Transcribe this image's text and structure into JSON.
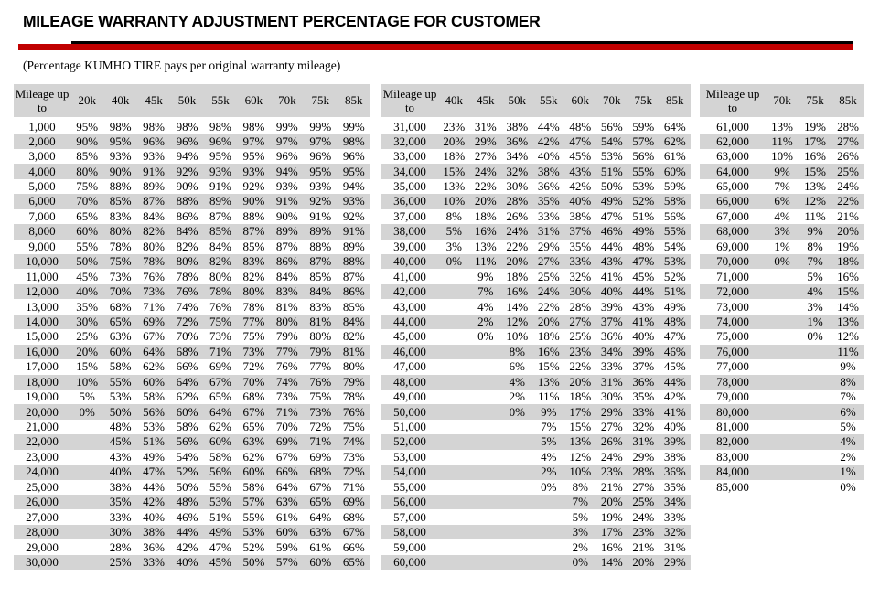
{
  "title": "MILEAGE WARRANTY ADJUSTMENT PERCENTAGE FOR CUSTOMER",
  "subtitle": "(Percentage KUMHO TIRE pays per original warranty mileage)",
  "colors": {
    "accent_red": "#c00000",
    "rule_black": "#000000",
    "header_gray": "#d4d4d4",
    "stripe_gray": "#d4d4d4"
  },
  "tables": [
    {
      "mileage_header": "Mileage up to",
      "columns": [
        "20k",
        "40k",
        "45k",
        "50k",
        "55k",
        "60k",
        "70k",
        "75k",
        "85k"
      ],
      "rows": [
        {
          "mileage": "1,000",
          "values": [
            "95%",
            "98%",
            "98%",
            "98%",
            "98%",
            "98%",
            "99%",
            "99%",
            "99%"
          ]
        },
        {
          "mileage": "2,000",
          "values": [
            "90%",
            "95%",
            "96%",
            "96%",
            "96%",
            "97%",
            "97%",
            "97%",
            "98%"
          ]
        },
        {
          "mileage": "3,000",
          "values": [
            "85%",
            "93%",
            "93%",
            "94%",
            "95%",
            "95%",
            "96%",
            "96%",
            "96%"
          ]
        },
        {
          "mileage": "4,000",
          "values": [
            "80%",
            "90%",
            "91%",
            "92%",
            "93%",
            "93%",
            "94%",
            "95%",
            "95%"
          ]
        },
        {
          "mileage": "5,000",
          "values": [
            "75%",
            "88%",
            "89%",
            "90%",
            "91%",
            "92%",
            "93%",
            "93%",
            "94%"
          ]
        },
        {
          "mileage": "6,000",
          "values": [
            "70%",
            "85%",
            "87%",
            "88%",
            "89%",
            "90%",
            "91%",
            "92%",
            "93%"
          ]
        },
        {
          "mileage": "7,000",
          "values": [
            "65%",
            "83%",
            "84%",
            "86%",
            "87%",
            "88%",
            "90%",
            "91%",
            "92%"
          ]
        },
        {
          "mileage": "8,000",
          "values": [
            "60%",
            "80%",
            "82%",
            "84%",
            "85%",
            "87%",
            "89%",
            "89%",
            "91%"
          ]
        },
        {
          "mileage": "9,000",
          "values": [
            "55%",
            "78%",
            "80%",
            "82%",
            "84%",
            "85%",
            "87%",
            "88%",
            "89%"
          ]
        },
        {
          "mileage": "10,000",
          "values": [
            "50%",
            "75%",
            "78%",
            "80%",
            "82%",
            "83%",
            "86%",
            "87%",
            "88%"
          ]
        },
        {
          "mileage": "11,000",
          "values": [
            "45%",
            "73%",
            "76%",
            "78%",
            "80%",
            "82%",
            "84%",
            "85%",
            "87%"
          ]
        },
        {
          "mileage": "12,000",
          "values": [
            "40%",
            "70%",
            "73%",
            "76%",
            "78%",
            "80%",
            "83%",
            "84%",
            "86%"
          ]
        },
        {
          "mileage": "13,000",
          "values": [
            "35%",
            "68%",
            "71%",
            "74%",
            "76%",
            "78%",
            "81%",
            "83%",
            "85%"
          ]
        },
        {
          "mileage": "14,000",
          "values": [
            "30%",
            "65%",
            "69%",
            "72%",
            "75%",
            "77%",
            "80%",
            "81%",
            "84%"
          ]
        },
        {
          "mileage": "15,000",
          "values": [
            "25%",
            "63%",
            "67%",
            "70%",
            "73%",
            "75%",
            "79%",
            "80%",
            "82%"
          ]
        },
        {
          "mileage": "16,000",
          "values": [
            "20%",
            "60%",
            "64%",
            "68%",
            "71%",
            "73%",
            "77%",
            "79%",
            "81%"
          ]
        },
        {
          "mileage": "17,000",
          "values": [
            "15%",
            "58%",
            "62%",
            "66%",
            "69%",
            "72%",
            "76%",
            "77%",
            "80%"
          ]
        },
        {
          "mileage": "18,000",
          "values": [
            "10%",
            "55%",
            "60%",
            "64%",
            "67%",
            "70%",
            "74%",
            "76%",
            "79%"
          ]
        },
        {
          "mileage": "19,000",
          "values": [
            "5%",
            "53%",
            "58%",
            "62%",
            "65%",
            "68%",
            "73%",
            "75%",
            "78%"
          ]
        },
        {
          "mileage": "20,000",
          "values": [
            "0%",
            "50%",
            "56%",
            "60%",
            "64%",
            "67%",
            "71%",
            "73%",
            "76%"
          ]
        },
        {
          "mileage": "21,000",
          "values": [
            "",
            "48%",
            "53%",
            "58%",
            "62%",
            "65%",
            "70%",
            "72%",
            "75%"
          ]
        },
        {
          "mileage": "22,000",
          "values": [
            "",
            "45%",
            "51%",
            "56%",
            "60%",
            "63%",
            "69%",
            "71%",
            "74%"
          ]
        },
        {
          "mileage": "23,000",
          "values": [
            "",
            "43%",
            "49%",
            "54%",
            "58%",
            "62%",
            "67%",
            "69%",
            "73%"
          ]
        },
        {
          "mileage": "24,000",
          "values": [
            "",
            "40%",
            "47%",
            "52%",
            "56%",
            "60%",
            "66%",
            "68%",
            "72%"
          ]
        },
        {
          "mileage": "25,000",
          "values": [
            "",
            "38%",
            "44%",
            "50%",
            "55%",
            "58%",
            "64%",
            "67%",
            "71%"
          ]
        },
        {
          "mileage": "26,000",
          "values": [
            "",
            "35%",
            "42%",
            "48%",
            "53%",
            "57%",
            "63%",
            "65%",
            "69%"
          ]
        },
        {
          "mileage": "27,000",
          "values": [
            "",
            "33%",
            "40%",
            "46%",
            "51%",
            "55%",
            "61%",
            "64%",
            "68%"
          ]
        },
        {
          "mileage": "28,000",
          "values": [
            "",
            "30%",
            "38%",
            "44%",
            "49%",
            "53%",
            "60%",
            "63%",
            "67%"
          ]
        },
        {
          "mileage": "29,000",
          "values": [
            "",
            "28%",
            "36%",
            "42%",
            "47%",
            "52%",
            "59%",
            "61%",
            "66%"
          ]
        },
        {
          "mileage": "30,000",
          "values": [
            "",
            "25%",
            "33%",
            "40%",
            "45%",
            "50%",
            "57%",
            "60%",
            "65%"
          ]
        }
      ]
    },
    {
      "mileage_header": "Mileage up to",
      "columns": [
        "40k",
        "45k",
        "50k",
        "55k",
        "60k",
        "70k",
        "75k",
        "85k"
      ],
      "rows": [
        {
          "mileage": "31,000",
          "values": [
            "23%",
            "31%",
            "38%",
            "44%",
            "48%",
            "56%",
            "59%",
            "64%"
          ]
        },
        {
          "mileage": "32,000",
          "values": [
            "20%",
            "29%",
            "36%",
            "42%",
            "47%",
            "54%",
            "57%",
            "62%"
          ]
        },
        {
          "mileage": "33,000",
          "values": [
            "18%",
            "27%",
            "34%",
            "40%",
            "45%",
            "53%",
            "56%",
            "61%"
          ]
        },
        {
          "mileage": "34,000",
          "values": [
            "15%",
            "24%",
            "32%",
            "38%",
            "43%",
            "51%",
            "55%",
            "60%"
          ]
        },
        {
          "mileage": "35,000",
          "values": [
            "13%",
            "22%",
            "30%",
            "36%",
            "42%",
            "50%",
            "53%",
            "59%"
          ]
        },
        {
          "mileage": "36,000",
          "values": [
            "10%",
            "20%",
            "28%",
            "35%",
            "40%",
            "49%",
            "52%",
            "58%"
          ]
        },
        {
          "mileage": "37,000",
          "values": [
            "8%",
            "18%",
            "26%",
            "33%",
            "38%",
            "47%",
            "51%",
            "56%"
          ]
        },
        {
          "mileage": "38,000",
          "values": [
            "5%",
            "16%",
            "24%",
            "31%",
            "37%",
            "46%",
            "49%",
            "55%"
          ]
        },
        {
          "mileage": "39,000",
          "values": [
            "3%",
            "13%",
            "22%",
            "29%",
            "35%",
            "44%",
            "48%",
            "54%"
          ]
        },
        {
          "mileage": "40,000",
          "values": [
            "0%",
            "11%",
            "20%",
            "27%",
            "33%",
            "43%",
            "47%",
            "53%"
          ]
        },
        {
          "mileage": "41,000",
          "values": [
            "",
            "9%",
            "18%",
            "25%",
            "32%",
            "41%",
            "45%",
            "52%"
          ]
        },
        {
          "mileage": "42,000",
          "values": [
            "",
            "7%",
            "16%",
            "24%",
            "30%",
            "40%",
            "44%",
            "51%"
          ]
        },
        {
          "mileage": "43,000",
          "values": [
            "",
            "4%",
            "14%",
            "22%",
            "28%",
            "39%",
            "43%",
            "49%"
          ]
        },
        {
          "mileage": "44,000",
          "values": [
            "",
            "2%",
            "12%",
            "20%",
            "27%",
            "37%",
            "41%",
            "48%"
          ]
        },
        {
          "mileage": "45,000",
          "values": [
            "",
            "0%",
            "10%",
            "18%",
            "25%",
            "36%",
            "40%",
            "47%"
          ]
        },
        {
          "mileage": "46,000",
          "values": [
            "",
            "",
            "8%",
            "16%",
            "23%",
            "34%",
            "39%",
            "46%"
          ]
        },
        {
          "mileage": "47,000",
          "values": [
            "",
            "",
            "6%",
            "15%",
            "22%",
            "33%",
            "37%",
            "45%"
          ]
        },
        {
          "mileage": "48,000",
          "values": [
            "",
            "",
            "4%",
            "13%",
            "20%",
            "31%",
            "36%",
            "44%"
          ]
        },
        {
          "mileage": "49,000",
          "values": [
            "",
            "",
            "2%",
            "11%",
            "18%",
            "30%",
            "35%",
            "42%"
          ]
        },
        {
          "mileage": "50,000",
          "values": [
            "",
            "",
            "0%",
            "9%",
            "17%",
            "29%",
            "33%",
            "41%"
          ]
        },
        {
          "mileage": "51,000",
          "values": [
            "",
            "",
            "",
            "7%",
            "15%",
            "27%",
            "32%",
            "40%"
          ]
        },
        {
          "mileage": "52,000",
          "values": [
            "",
            "",
            "",
            "5%",
            "13%",
            "26%",
            "31%",
            "39%"
          ]
        },
        {
          "mileage": "53,000",
          "values": [
            "",
            "",
            "",
            "4%",
            "12%",
            "24%",
            "29%",
            "38%"
          ]
        },
        {
          "mileage": "54,000",
          "values": [
            "",
            "",
            "",
            "2%",
            "10%",
            "23%",
            "28%",
            "36%"
          ]
        },
        {
          "mileage": "55,000",
          "values": [
            "",
            "",
            "",
            "0%",
            "8%",
            "21%",
            "27%",
            "35%"
          ]
        },
        {
          "mileage": "56,000",
          "values": [
            "",
            "",
            "",
            "",
            "7%",
            "20%",
            "25%",
            "34%"
          ]
        },
        {
          "mileage": "57,000",
          "values": [
            "",
            "",
            "",
            "",
            "5%",
            "19%",
            "24%",
            "33%"
          ]
        },
        {
          "mileage": "58,000",
          "values": [
            "",
            "",
            "",
            "",
            "3%",
            "17%",
            "23%",
            "32%"
          ]
        },
        {
          "mileage": "59,000",
          "values": [
            "",
            "",
            "",
            "",
            "2%",
            "16%",
            "21%",
            "31%"
          ]
        },
        {
          "mileage": "60,000",
          "values": [
            "",
            "",
            "",
            "",
            "0%",
            "14%",
            "20%",
            "29%"
          ]
        }
      ]
    },
    {
      "mileage_header": "Mileage up to",
      "columns": [
        "70k",
        "75k",
        "85k"
      ],
      "rows": [
        {
          "mileage": "61,000",
          "values": [
            "13%",
            "19%",
            "28%"
          ]
        },
        {
          "mileage": "62,000",
          "values": [
            "11%",
            "17%",
            "27%"
          ]
        },
        {
          "mileage": "63,000",
          "values": [
            "10%",
            "16%",
            "26%"
          ]
        },
        {
          "mileage": "64,000",
          "values": [
            "9%",
            "15%",
            "25%"
          ]
        },
        {
          "mileage": "65,000",
          "values": [
            "7%",
            "13%",
            "24%"
          ]
        },
        {
          "mileage": "66,000",
          "values": [
            "6%",
            "12%",
            "22%"
          ]
        },
        {
          "mileage": "67,000",
          "values": [
            "4%",
            "11%",
            "21%"
          ]
        },
        {
          "mileage": "68,000",
          "values": [
            "3%",
            "9%",
            "20%"
          ]
        },
        {
          "mileage": "69,000",
          "values": [
            "1%",
            "8%",
            "19%"
          ]
        },
        {
          "mileage": "70,000",
          "values": [
            "0%",
            "7%",
            "18%"
          ]
        },
        {
          "mileage": "71,000",
          "values": [
            "",
            "5%",
            "16%"
          ]
        },
        {
          "mileage": "72,000",
          "values": [
            "",
            "4%",
            "15%"
          ]
        },
        {
          "mileage": "73,000",
          "values": [
            "",
            "3%",
            "14%"
          ]
        },
        {
          "mileage": "74,000",
          "values": [
            "",
            "1%",
            "13%"
          ]
        },
        {
          "mileage": "75,000",
          "values": [
            "",
            "0%",
            "12%"
          ]
        },
        {
          "mileage": "76,000",
          "values": [
            "",
            "",
            "11%"
          ]
        },
        {
          "mileage": "77,000",
          "values": [
            "",
            "",
            "9%"
          ]
        },
        {
          "mileage": "78,000",
          "values": [
            "",
            "",
            "8%"
          ]
        },
        {
          "mileage": "79,000",
          "values": [
            "",
            "",
            "7%"
          ]
        },
        {
          "mileage": "80,000",
          "values": [
            "",
            "",
            "6%"
          ]
        },
        {
          "mileage": "81,000",
          "values": [
            "",
            "",
            "5%"
          ]
        },
        {
          "mileage": "82,000",
          "values": [
            "",
            "",
            "4%"
          ]
        },
        {
          "mileage": "83,000",
          "values": [
            "",
            "",
            "2%"
          ]
        },
        {
          "mileage": "84,000",
          "values": [
            "",
            "",
            "1%"
          ]
        },
        {
          "mileage": "85,000",
          "values": [
            "",
            "",
            "0%"
          ]
        }
      ]
    }
  ]
}
